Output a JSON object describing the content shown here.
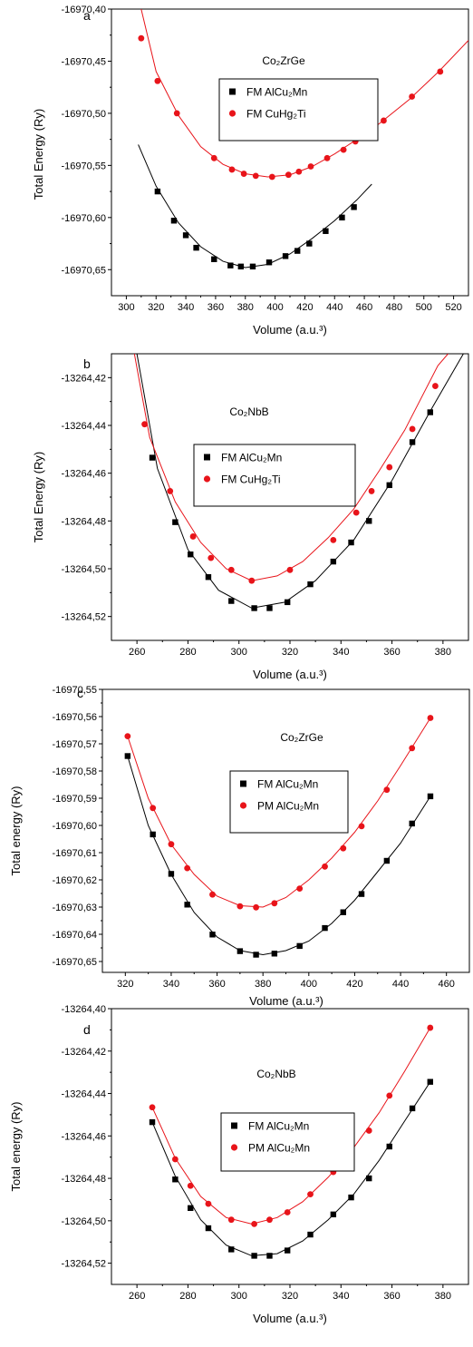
{
  "chart_data": [
    {
      "type": "scatter",
      "panel_label": "a",
      "title": "Co₂ZrGe",
      "xlabel": "Volume (a.u.³)",
      "ylabel": "Total Energy (Ry)",
      "xlim": [
        290,
        530
      ],
      "ylim": [
        -16970.675,
        -16970.4
      ],
      "xticks": [
        300,
        320,
        340,
        360,
        380,
        400,
        420,
        440,
        460,
        480,
        500,
        520
      ],
      "xtick_labels": [
        "300",
        "320",
        "340",
        "360",
        "380",
        "400",
        "420",
        "440",
        "460",
        "480",
        "500",
        "520"
      ],
      "yticks": [
        -16970.4,
        -16970.45,
        -16970.5,
        -16970.55,
        -16970.6,
        -16970.65
      ],
      "ytick_labels": [
        "-16970,40",
        "-16970,45",
        "-16970,50",
        "-16970,55",
        "-16970,60",
        "-16970,65"
      ],
      "legend": "top-center, boxed",
      "series": [
        {
          "name": "FM AlCu₂Mn",
          "marker": "square",
          "color": "#000000",
          "x": [
            321,
            332,
            340,
            347,
            359,
            370,
            377,
            385,
            396,
            407,
            415,
            423,
            434,
            445,
            453
          ],
          "y": [
            -16970.575,
            -16970.603,
            -16970.617,
            -16970.629,
            -16970.64,
            -16970.646,
            -16970.647,
            -16970.647,
            -16970.643,
            -16970.637,
            -16970.632,
            -16970.625,
            -16970.613,
            -16970.6,
            -16970.59
          ],
          "fit": [
            [
              308,
              -16970.53
            ],
            [
              320,
              -16970.57
            ],
            [
              335,
              -16970.605
            ],
            [
              350,
              -16970.628
            ],
            [
              365,
              -16970.642
            ],
            [
              380,
              -16970.648
            ],
            [
              395,
              -16970.645
            ],
            [
              410,
              -16970.635
            ],
            [
              425,
              -16970.62
            ],
            [
              440,
              -16970.603
            ],
            [
              455,
              -16970.583
            ],
            [
              465,
              -16970.568
            ]
          ]
        },
        {
          "name": "FM CuHg₂Ti",
          "marker": "circle",
          "color": "#e8141a",
          "x": [
            310,
            321,
            334,
            359,
            371,
            379,
            387,
            398,
            409,
            416,
            424,
            435,
            446,
            454,
            473,
            492,
            511
          ],
          "y": [
            -16970.428,
            -16970.469,
            -16970.5,
            -16970.543,
            -16970.554,
            -16970.558,
            -16970.56,
            -16970.561,
            -16970.559,
            -16970.556,
            -16970.551,
            -16970.543,
            -16970.535,
            -16970.527,
            -16970.507,
            -16970.484,
            -16970.46
          ],
          "fit": [
            [
              310,
              -16970.4
            ],
            [
              320,
              -16970.46
            ],
            [
              335,
              -16970.502
            ],
            [
              350,
              -16970.532
            ],
            [
              365,
              -16970.549
            ],
            [
              380,
              -16970.558
            ],
            [
              395,
              -16970.561
            ],
            [
              410,
              -16970.559
            ],
            [
              425,
              -16970.551
            ],
            [
              440,
              -16970.539
            ],
            [
              455,
              -16970.525
            ],
            [
              470,
              -16970.51
            ],
            [
              490,
              -16970.487
            ],
            [
              510,
              -16970.46
            ],
            [
              530,
              -16970.43
            ]
          ]
        }
      ]
    },
    {
      "type": "scatter",
      "panel_label": "b",
      "title": "Co₂NbB",
      "xlabel": "Volume (a.u.³)",
      "ylabel": "Total Energy (Ry)",
      "xlim": [
        250,
        390
      ],
      "ylim": [
        -13264.53,
        -13264.41
      ],
      "xticks": [
        260,
        280,
        300,
        320,
        340,
        360,
        380
      ],
      "xtick_labels": [
        "260",
        "280",
        "300",
        "320",
        "340",
        "360",
        "380"
      ],
      "yticks": [
        -13264.42,
        -13264.44,
        -13264.46,
        -13264.48,
        -13264.5,
        -13264.52
      ],
      "ytick_labels": [
        "-13264,42",
        "-13264,44",
        "-13264,46",
        "-13264,48",
        "-13264,50",
        "-13264,52"
      ],
      "legend": "center, boxed",
      "series": [
        {
          "name": "FM AlCu₂Mn",
          "marker": "square",
          "color": "#000000",
          "x": [
            266,
            275,
            281,
            288,
            297,
            306,
            312,
            319,
            328,
            337,
            344,
            351,
            359,
            368,
            375
          ],
          "y": [
            -13264.4535,
            -13264.4805,
            -13264.494,
            -13264.5035,
            -13264.5135,
            -13264.5165,
            -13264.5165,
            -13264.514,
            -13264.5065,
            -13264.497,
            -13264.489,
            -13264.48,
            -13264.465,
            -13264.447,
            -13264.4345
          ],
          "fit": [
            [
              260,
              -13264.41
            ],
            [
              268,
              -13264.458
            ],
            [
              280,
              -13264.492
            ],
            [
              292,
              -13264.509
            ],
            [
              305,
              -13264.5165
            ],
            [
              318,
              -13264.514
            ],
            [
              330,
              -13264.505
            ],
            [
              345,
              -13264.488
            ],
            [
              360,
              -13264.463
            ],
            [
              375,
              -13264.434
            ],
            [
              388,
              -13264.41
            ]
          ]
        },
        {
          "name": "FM CuHg₂Ti",
          "marker": "circle",
          "color": "#e8141a",
          "x": [
            263,
            273,
            282,
            289,
            297,
            305,
            320,
            337,
            346,
            352,
            359,
            368,
            377
          ],
          "y": [
            -13264.4395,
            -13264.4675,
            -13264.4865,
            -13264.4955,
            -13264.5005,
            -13264.505,
            -13264.5005,
            -13264.488,
            -13264.4765,
            -13264.4675,
            -13264.4575,
            -13264.4415,
            -13264.4235
          ],
          "fit": [
            [
              259,
              -13264.41
            ],
            [
              265,
              -13264.445
            ],
            [
              275,
              -13264.472
            ],
            [
              285,
              -13264.489
            ],
            [
              295,
              -13264.5
            ],
            [
              305,
              -13264.505
            ],
            [
              315,
              -13264.503
            ],
            [
              325,
              -13264.497
            ],
            [
              335,
              -13264.487
            ],
            [
              345,
              -13264.475
            ],
            [
              355,
              -13264.459
            ],
            [
              365,
              -13264.442
            ],
            [
              378,
              -13264.415
            ],
            [
              382,
              -13264.41
            ]
          ]
        }
      ]
    },
    {
      "type": "scatter",
      "panel_label": "c",
      "title": "Co₂ZrGe",
      "xlabel": "Volume (a.u.³)",
      "ylabel": "Total energy (Ry)",
      "xlim": [
        310,
        470
      ],
      "ylim": [
        -16970.654,
        -16970.55
      ],
      "xticks": [
        320,
        340,
        360,
        380,
        400,
        420,
        440,
        460
      ],
      "xtick_labels": [
        "320",
        "340",
        "360",
        "380",
        "400",
        "420",
        "440",
        "460"
      ],
      "yticks": [
        -16970.55,
        -16970.56,
        -16970.57,
        -16970.58,
        -16970.59,
        -16970.6,
        -16970.61,
        -16970.62,
        -16970.63,
        -16970.64,
        -16970.65
      ],
      "ytick_labels": [
        "-16970,55",
        "-16970,56",
        "-16970,57",
        "-16970,58",
        "-16970,59",
        "-16970,60",
        "-16970,61",
        "-16970,62",
        "-16970,63",
        "-16970,64",
        "-16970,65"
      ],
      "legend": "top-center, boxed",
      "series": [
        {
          "name": "FM AlCu₂Mn",
          "marker": "square",
          "color": "#000000",
          "x": [
            321,
            332,
            340,
            347,
            358,
            370,
            377,
            385,
            396,
            407,
            415,
            423,
            434,
            445,
            453
          ],
          "y": [
            -16970.5745,
            -16970.6033,
            -16970.6178,
            -16970.6291,
            -16970.6401,
            -16970.6462,
            -16970.6475,
            -16970.6471,
            -16970.6443,
            -16970.6377,
            -16970.6319,
            -16970.6252,
            -16970.613,
            -16970.5993,
            -16970.5893
          ],
          "fit": [
            [
              321,
              -16970.5745
            ],
            [
              330,
              -16970.6
            ],
            [
              340,
              -16970.618
            ],
            [
              350,
              -16970.632
            ],
            [
              360,
              -16970.641
            ],
            [
              370,
              -16970.646
            ],
            [
              380,
              -16970.6475
            ],
            [
              390,
              -16970.646
            ],
            [
              400,
              -16970.6425
            ],
            [
              410,
              -16970.636
            ],
            [
              420,
              -16970.6275
            ],
            [
              430,
              -16970.617
            ],
            [
              440,
              -16970.6065
            ],
            [
              453,
              -16970.5893
            ]
          ]
        },
        {
          "name": "PM AlCu₂Mn",
          "marker": "circle",
          "color": "#e8141a",
          "x": [
            321,
            332,
            340,
            347,
            358,
            370,
            377,
            385,
            396,
            407,
            415,
            423,
            434,
            445,
            453
          ],
          "y": [
            -16970.5672,
            -16970.5936,
            -16970.6069,
            -16970.6157,
            -16970.6254,
            -16970.6297,
            -16970.6301,
            -16970.6286,
            -16970.6232,
            -16970.6151,
            -16970.6084,
            -16970.6003,
            -16970.5869,
            -16970.5716,
            -16970.5605
          ],
          "fit": [
            [
              321,
              -16970.5672
            ],
            [
              330,
              -16970.59
            ],
            [
              340,
              -16970.607
            ],
            [
              350,
              -16970.618
            ],
            [
              360,
              -16970.626
            ],
            [
              370,
              -16970.6295
            ],
            [
              380,
              -16970.63
            ],
            [
              390,
              -16970.6265
            ],
            [
              400,
              -16970.62
            ],
            [
              410,
              -16970.612
            ],
            [
              420,
              -16970.6025
            ],
            [
              430,
              -16970.591
            ],
            [
              440,
              -16970.578
            ],
            [
              453,
              -16970.5605
            ]
          ]
        }
      ]
    },
    {
      "type": "scatter",
      "panel_label": "d",
      "title": "Co₂NbB",
      "xlabel": "Volume (a.u.³)",
      "ylabel": "Total energy (Ry)",
      "xlim": [
        250,
        390
      ],
      "ylim": [
        -13264.53,
        -13264.4
      ],
      "xticks": [
        260,
        280,
        300,
        320,
        340,
        360,
        380
      ],
      "xtick_labels": [
        "260",
        "280",
        "300",
        "320",
        "340",
        "360",
        "380"
      ],
      "yticks": [
        -13264.4,
        -13264.42,
        -13264.44,
        -13264.46,
        -13264.48,
        -13264.5,
        -13264.52
      ],
      "ytick_labels": [
        "-13264,40",
        "-13264,42",
        "-13264,44",
        "-13264,46",
        "-13264,48",
        "-13264,50",
        "-13264,52"
      ],
      "legend": "top-center, boxed",
      "series": [
        {
          "name": "FM AlCu₂Mn",
          "marker": "square",
          "color": "#000000",
          "x": [
            266,
            275,
            281,
            288,
            297,
            306,
            312,
            319,
            328,
            337,
            344,
            351,
            359,
            368,
            375
          ],
          "y": [
            -13264.4535,
            -13264.4805,
            -13264.494,
            -13264.5035,
            -13264.5135,
            -13264.5165,
            -13264.5165,
            -13264.514,
            -13264.5065,
            -13264.497,
            -13264.489,
            -13264.48,
            -13264.465,
            -13264.447,
            -13264.4345
          ],
          "fit": [
            [
              266,
              -13264.4535
            ],
            [
              275,
              -13264.479
            ],
            [
              285,
              -13264.4995
            ],
            [
              295,
              -13264.5115
            ],
            [
              305,
              -13264.5165
            ],
            [
              315,
              -13264.5155
            ],
            [
              325,
              -13264.5095
            ],
            [
              335,
              -13264.4995
            ],
            [
              345,
              -13264.4875
            ],
            [
              355,
              -13264.4715
            ],
            [
              365,
              -13264.453
            ],
            [
              375,
              -13264.4345
            ]
          ]
        },
        {
          "name": "PM AlCu₂Mn",
          "marker": "circle",
          "color": "#e8141a",
          "x": [
            266,
            275,
            281,
            288,
            297,
            306,
            312,
            319,
            328,
            337,
            344,
            351,
            359,
            375
          ],
          "y": [
            -13264.4465,
            -13264.471,
            -13264.4835,
            -13264.492,
            -13264.4995,
            -13264.5015,
            -13264.4995,
            -13264.496,
            -13264.4875,
            -13264.477,
            -13264.4675,
            -13264.4575,
            -13264.441,
            -13264.409
          ],
          "fit": [
            [
              266,
              -13264.4465
            ],
            [
              275,
              -13264.4705
            ],
            [
              285,
              -13264.4885
            ],
            [
              295,
              -13264.4985
            ],
            [
              305,
              -13264.5015
            ],
            [
              315,
              -13264.4985
            ],
            [
              325,
              -13264.491
            ],
            [
              335,
              -13264.4795
            ],
            [
              345,
              -13264.4655
            ],
            [
              355,
              -13264.449
            ],
            [
              365,
              -13264.4295
            ],
            [
              375,
              -13264.409
            ]
          ]
        }
      ]
    }
  ]
}
